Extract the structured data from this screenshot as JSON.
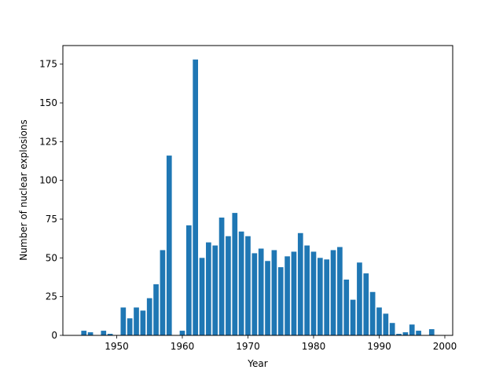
{
  "chart_data": {
    "type": "bar",
    "title": "",
    "xlabel": "Year",
    "ylabel": "Number of nuclear explosions",
    "xlim": [
      1941.8,
      2001.2
    ],
    "ylim": [
      0,
      187
    ],
    "xticks": [
      1950,
      1960,
      1970,
      1980,
      1990,
      2000
    ],
    "yticks": [
      0,
      25,
      50,
      75,
      100,
      125,
      150,
      175
    ],
    "grid": false,
    "bar_color": "#1f77b4",
    "x": [
      1945,
      1946,
      1948,
      1949,
      1951,
      1952,
      1953,
      1954,
      1955,
      1956,
      1957,
      1958,
      1960,
      1961,
      1962,
      1963,
      1964,
      1965,
      1966,
      1967,
      1968,
      1969,
      1970,
      1971,
      1972,
      1973,
      1974,
      1975,
      1976,
      1977,
      1978,
      1979,
      1980,
      1981,
      1982,
      1983,
      1984,
      1985,
      1986,
      1987,
      1988,
      1989,
      1990,
      1991,
      1992,
      1993,
      1994,
      1995,
      1996,
      1998
    ],
    "values": [
      3,
      2,
      3,
      1,
      18,
      11,
      18,
      16,
      24,
      33,
      55,
      116,
      3,
      71,
      178,
      50,
      60,
      58,
      76,
      64,
      79,
      67,
      64,
      53,
      56,
      48,
      55,
      44,
      51,
      54,
      66,
      58,
      54,
      50,
      49,
      55,
      57,
      36,
      23,
      47,
      40,
      28,
      18,
      14,
      8,
      1,
      2,
      7,
      3,
      4
    ]
  }
}
